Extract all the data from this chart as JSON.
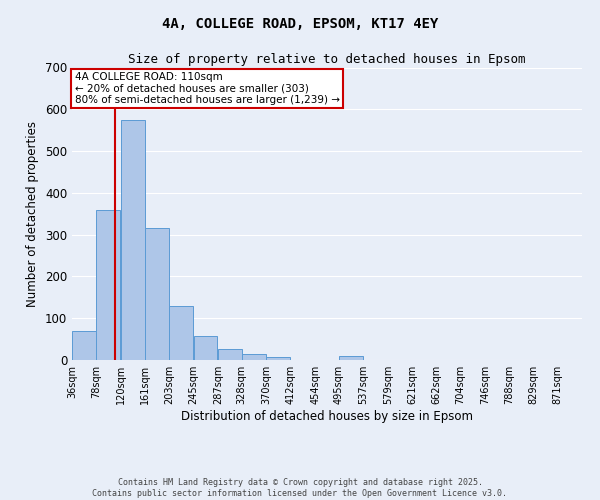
{
  "title_line1": "4A, COLLEGE ROAD, EPSOM, KT17 4EY",
  "title_line2": "Size of property relative to detached houses in Epsom",
  "xlabel": "Distribution of detached houses by size in Epsom",
  "ylabel": "Number of detached properties",
  "bins": [
    36,
    78,
    120,
    161,
    203,
    245,
    287,
    328,
    370,
    412,
    454,
    495,
    537,
    579,
    621,
    662,
    704,
    746,
    788,
    829,
    871
  ],
  "counts": [
    70,
    358,
    575,
    315,
    130,
    57,
    27,
    15,
    7,
    1,
    1,
    9,
    0,
    0,
    0,
    0,
    0,
    0,
    0,
    0
  ],
  "bar_color": "#aec6e8",
  "bar_edge_color": "#5b9bd5",
  "vline_x": 110,
  "vline_color": "#cc0000",
  "annotation_text": "4A COLLEGE ROAD: 110sqm\n← 20% of detached houses are smaller (303)\n80% of semi-detached houses are larger (1,239) →",
  "annotation_box_color": "#cc0000",
  "annotation_text_color": "#000000",
  "ylim": [
    0,
    700
  ],
  "yticks": [
    0,
    100,
    200,
    300,
    400,
    500,
    600,
    700
  ],
  "background_color": "#e8eef8",
  "grid_color": "#ffffff",
  "footer_line1": "Contains HM Land Registry data © Crown copyright and database right 2025.",
  "footer_line2": "Contains public sector information licensed under the Open Government Licence v3.0."
}
